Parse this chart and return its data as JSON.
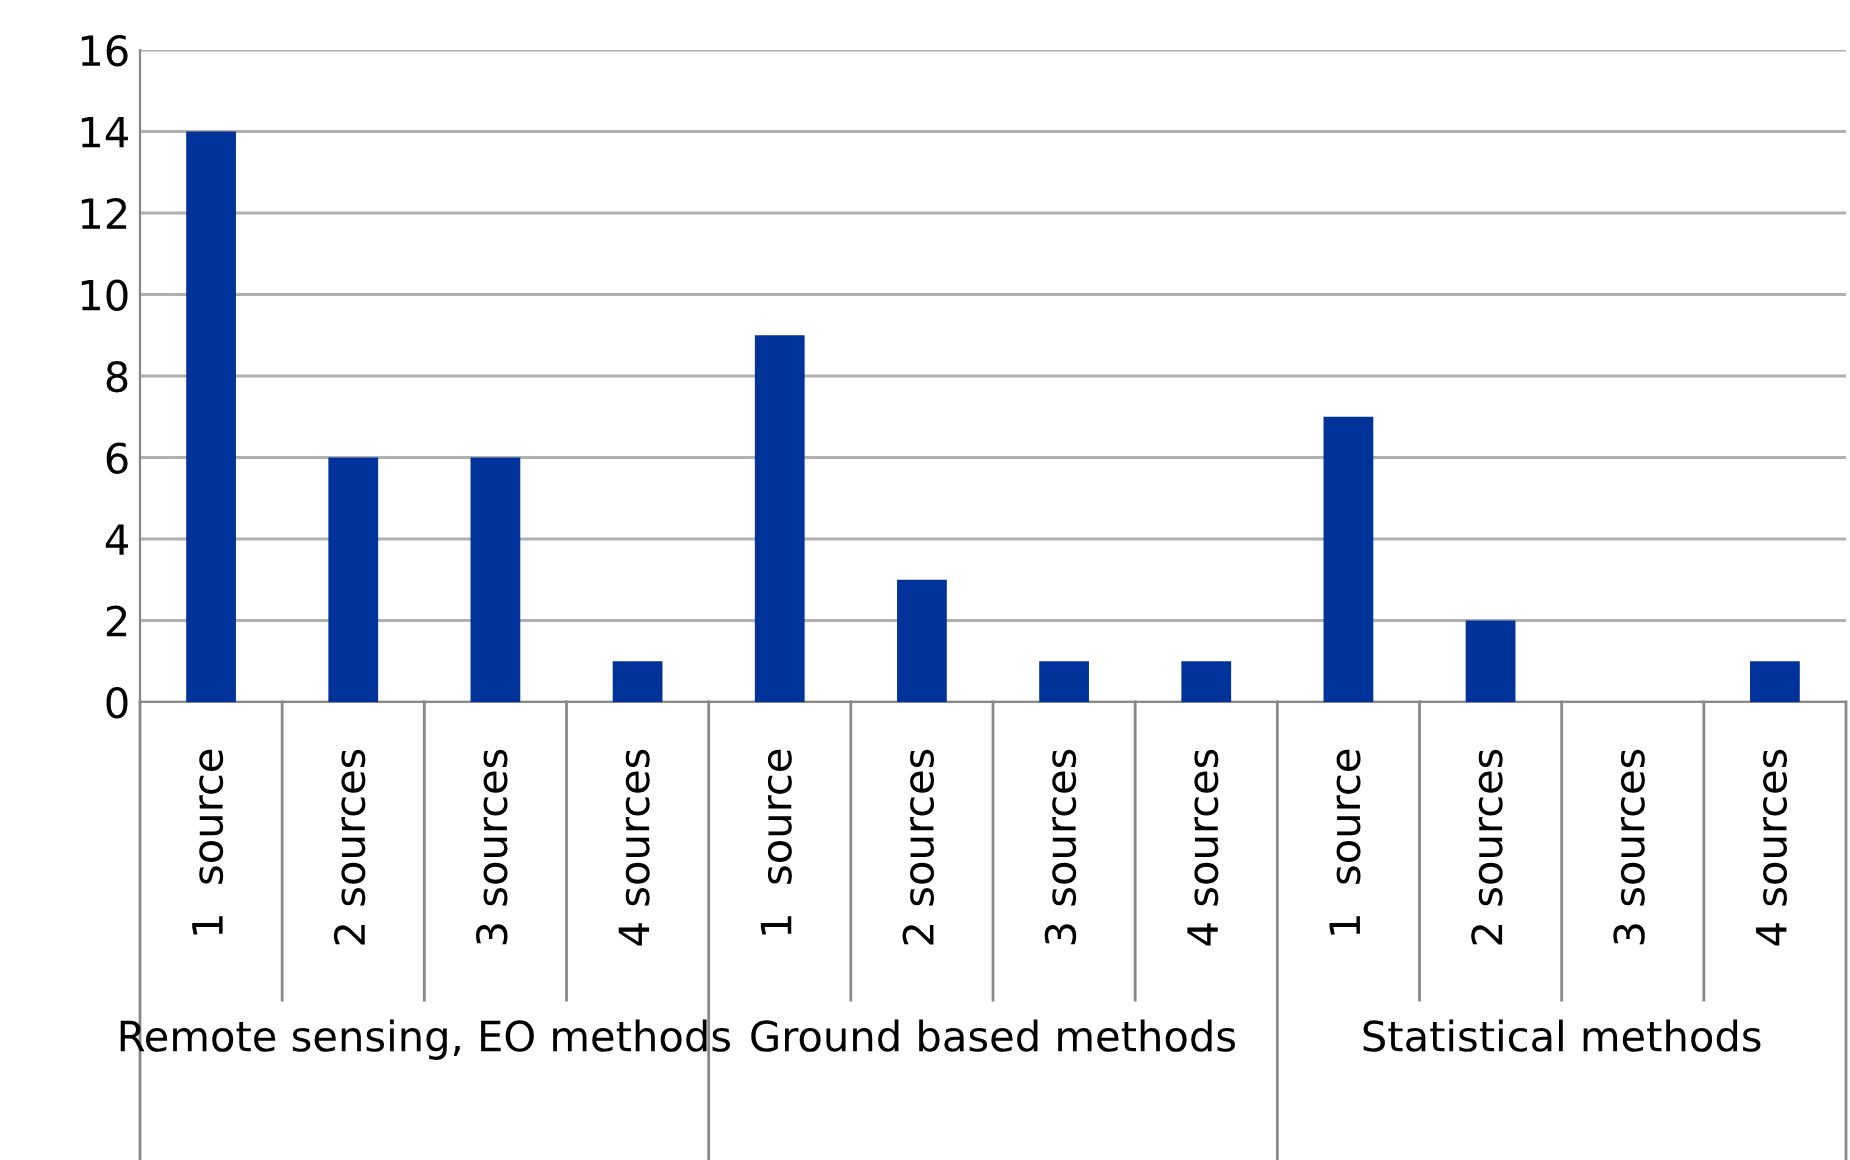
{
  "chart_data": {
    "type": "bar",
    "categories": [
      "1  source",
      "2 sources",
      "3 sources",
      "4 sources",
      "1  source",
      "2 sources",
      "3 sources",
      "4 sources",
      "1  source",
      "2 sources",
      "3 sources",
      "4 sources"
    ],
    "values": [
      14,
      6,
      6,
      1,
      9,
      3,
      1,
      1,
      7,
      2,
      0,
      1
    ],
    "color": "#003399",
    "ylim": [
      0,
      16
    ],
    "yticks": [
      0,
      2,
      4,
      6,
      8,
      10,
      12,
      14,
      16
    ],
    "grid": "y",
    "annotations": [
      "Remote sensing, EO methods",
      "Ground based methods",
      "Statistical methods"
    ]
  }
}
